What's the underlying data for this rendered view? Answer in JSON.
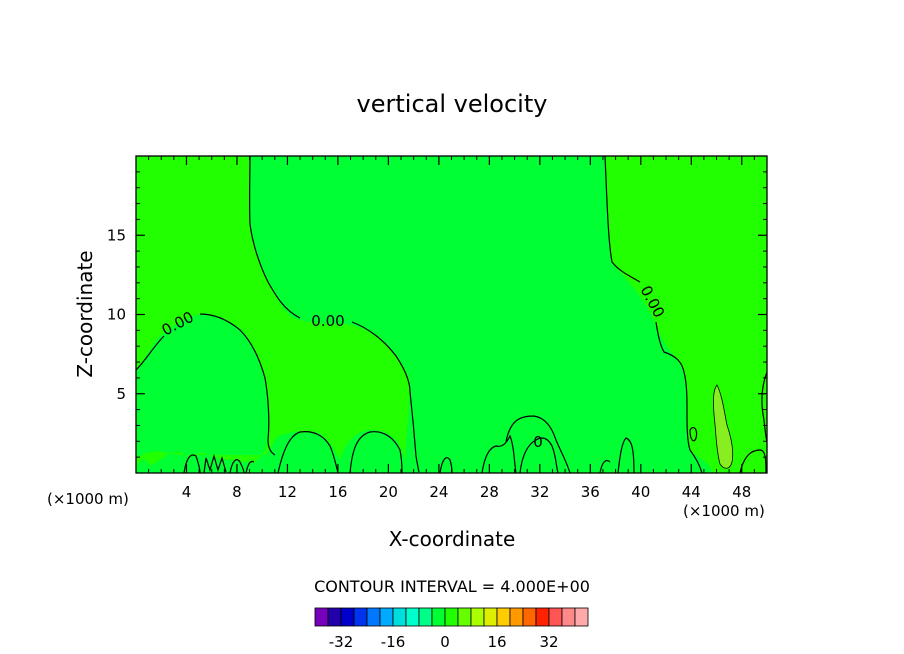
{
  "chart_data": {
    "type": "contour",
    "title": "vertical velocity",
    "xlabel": "X-coordinate",
    "ylabel": "Z-coordinate",
    "x_unit_left": "(×1000 m)",
    "x_unit_right": "(×1000 m)",
    "xlim": [
      0,
      50
    ],
    "ylim": [
      0,
      20
    ],
    "xticks": [
      4,
      8,
      12,
      16,
      20,
      24,
      28,
      32,
      36,
      40,
      44,
      48
    ],
    "yticks": [
      5,
      10,
      15
    ],
    "contour_interval_text": "CONTOUR INTERVAL = 4.000E+00",
    "contour_labels": [
      "0.00",
      "0.00",
      "0.00",
      "0"
    ],
    "field_colors": {
      "positive_region": "#22ff00",
      "near_zero_region": "#00ff33",
      "positive_peak": "#88ee22"
    },
    "colorbar": {
      "tick_labels": [
        "-32",
        "-16",
        "0",
        "16",
        "32"
      ],
      "tick_values": [
        -32,
        -16,
        0,
        16,
        32
      ],
      "colors": [
        "#7700bb",
        "#2200aa",
        "#0000cc",
        "#0033ee",
        "#0077ff",
        "#00aaff",
        "#00dddd",
        "#00ffcc",
        "#00ff88",
        "#00ff33",
        "#22ff00",
        "#66ff00",
        "#aaff00",
        "#ddee00",
        "#ffcc00",
        "#ff9900",
        "#ff6600",
        "#ff2200",
        "#ff5555",
        "#ff8888",
        "#ffaaaa"
      ]
    }
  }
}
